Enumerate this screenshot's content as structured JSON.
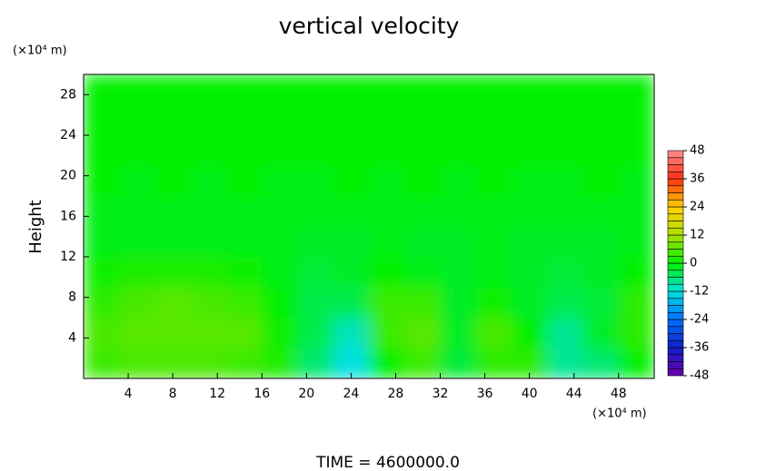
{
  "chart_data": {
    "type": "heatmap",
    "title": "vertical velocity",
    "ylabel": "Height",
    "x_unit": "(×10⁴ m)",
    "y_unit": "(×10⁴ m)",
    "footer": "TIME = 4600000.0",
    "xlim": [
      0,
      51.2
    ],
    "ylim": [
      0,
      30
    ],
    "xticks": [
      4,
      8,
      12,
      16,
      20,
      24,
      28,
      32,
      36,
      40,
      44,
      48
    ],
    "yticks": [
      4,
      8,
      12,
      16,
      20,
      24,
      28
    ],
    "clim": [
      -48,
      48
    ],
    "cticks": [
      -48,
      -36,
      -24,
      -12,
      0,
      12,
      24,
      36,
      48
    ],
    "colors": [
      "#6a00a8",
      "#1020c8",
      "#0070ff",
      "#00e0e0",
      "#00f000",
      "#b0e000",
      "#ffd000",
      "#ff3010",
      "#ff9090"
    ],
    "z": [
      [
        4,
        5,
        5,
        5,
        4,
        2,
        -6,
        -12,
        0,
        4,
        -3,
        3,
        3,
        -8,
        -6,
        0
      ],
      [
        5,
        6,
        6,
        6,
        6,
        1,
        -4,
        -10,
        4,
        6,
        -2,
        5,
        0,
        -8,
        -2,
        3
      ],
      [
        3,
        5,
        6,
        5,
        4,
        0,
        -4,
        -4,
        4,
        4,
        -2,
        1,
        -2,
        -4,
        -3,
        3
      ],
      [
        1,
        2,
        2,
        2,
        1,
        -1,
        -3,
        -2,
        0,
        -1,
        -2,
        -1,
        -2,
        -3,
        -2,
        0
      ],
      [
        -1,
        -1,
        -1,
        -1,
        -1,
        -1,
        -2,
        -2,
        -1,
        -2,
        -2,
        -1,
        -2,
        -2,
        -2,
        -1
      ],
      [
        -1,
        -1,
        -1,
        -1,
        -1,
        -1,
        -1,
        -1,
        -1,
        -1,
        -1,
        -1,
        -1,
        -1,
        -1,
        -1
      ],
      [
        0,
        -1,
        0,
        -1,
        0,
        -1,
        -1,
        0,
        -1,
        0,
        -1,
        0,
        -1,
        -1,
        0,
        -1
      ],
      [
        0,
        0,
        0,
        0,
        0,
        0,
        0,
        0,
        0,
        0,
        0,
        0,
        0,
        0,
        0,
        0
      ],
      [
        0,
        0,
        0,
        0,
        0,
        0,
        0,
        0,
        0,
        0,
        0,
        0,
        0,
        0,
        0,
        0
      ],
      [
        0,
        0,
        0,
        0,
        0,
        0,
        0,
        0,
        0,
        0,
        0,
        0,
        0,
        0,
        0,
        0
      ]
    ]
  }
}
